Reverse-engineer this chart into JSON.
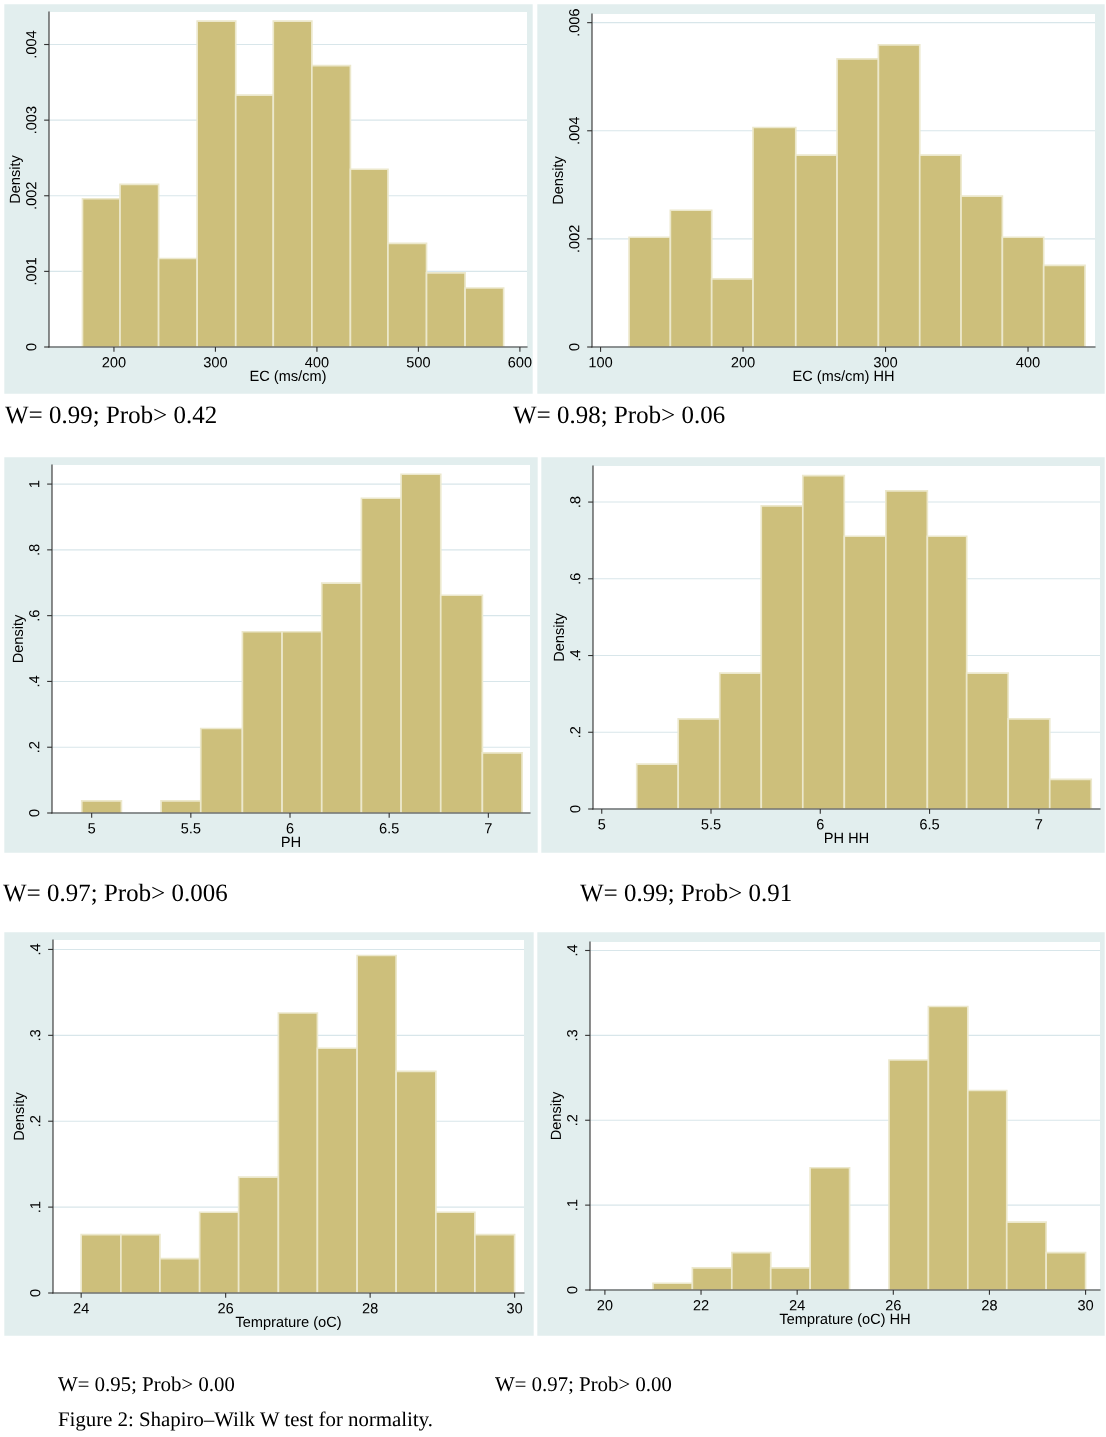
{
  "chart_data": [
    {
      "type": "histogram",
      "xlabel": "EC (ms/cm)",
      "ylabel": "Density",
      "color": "#cdbf7b",
      "bins": [
        169,
        206,
        244,
        282,
        320,
        357,
        395,
        433,
        470,
        508,
        546,
        584
      ],
      "values": [
        0.00196,
        0.00215,
        0.00117,
        0.00431,
        0.00333,
        0.00431,
        0.00372,
        0.00235,
        0.00137,
        0.00098,
        0.00078
      ],
      "xlim": [
        136,
        607
      ],
      "ylim": [
        0,
        0.00443
      ],
      "xticks": [
        200,
        300,
        400,
        500,
        600
      ],
      "yticks": [
        0,
        {
          "value": 0.001,
          "label": ".001"
        },
        {
          "value": 0.002,
          "label": ".002"
        },
        {
          "value": 0.003,
          "label": ".003"
        },
        {
          "value": 0.004,
          "label": ".004"
        }
      ],
      "grid": "y",
      "annotations": [
        "W= 0.99; Prob> 0.42"
      ]
    },
    {
      "type": "histogram",
      "xlabel": "EC (ms/cm) HH",
      "ylabel": "Density",
      "color": "#cdbf7b",
      "bins": [
        120,
        149,
        178,
        207,
        237,
        266,
        295,
        324,
        353,
        382,
        411,
        440
      ],
      "values": [
        0.00203,
        0.00253,
        0.00126,
        0.00406,
        0.00355,
        0.00533,
        0.00559,
        0.00355,
        0.00279,
        0.00203,
        0.00151
      ],
      "xlim": [
        94,
        447
      ],
      "ylim": [
        0,
        0.00616
      ],
      "xticks": [
        100,
        200,
        300,
        400
      ],
      "yticks": [
        0,
        {
          "value": 0.002,
          "label": ".002"
        },
        {
          "value": 0.004,
          "label": ".004"
        },
        {
          "value": 0.006,
          "label": ".006"
        }
      ],
      "grid": "y",
      "annotations": [
        "W= 0.98; Prob> 0.06"
      ]
    },
    {
      "type": "histogram",
      "xlabel": "PH",
      "ylabel": "Density",
      "color": "#cdbf7b",
      "bins": [
        4.95,
        5.15,
        5.35,
        5.55,
        5.76,
        5.96,
        6.16,
        6.36,
        6.56,
        6.76,
        6.97,
        7.17
      ],
      "values": [
        0.037,
        0,
        0.037,
        0.257,
        0.551,
        0.551,
        0.699,
        0.957,
        1.03,
        0.662,
        0.183
      ],
      "xlim": [
        4.8,
        7.21
      ],
      "ylim": [
        0,
        1.058
      ],
      "xticks": [
        5,
        5.5,
        6,
        6.5,
        7
      ],
      "yticks": [
        0,
        {
          "value": 0.2,
          "label": ".2"
        },
        {
          "value": 0.4,
          "label": ".4"
        },
        {
          "value": 0.6,
          "label": ".6"
        },
        {
          "value": 0.8,
          "label": ".8"
        },
        1
      ],
      "grid": "y",
      "annotations": [
        "W= 0.97; Prob> 0.006"
      ]
    },
    {
      "type": "histogram",
      "xlabel": "PH HH",
      "ylabel": "Density",
      "color": "#cdbf7b",
      "bins": [
        5.16,
        5.35,
        5.54,
        5.73,
        5.92,
        6.11,
        6.3,
        6.49,
        6.67,
        6.86,
        7.05,
        7.24
      ],
      "values": [
        0.117,
        0.235,
        0.354,
        0.79,
        0.869,
        0.711,
        0.829,
        0.711,
        0.354,
        0.235,
        0.077
      ],
      "xlim": [
        4.96,
        7.28
      ],
      "ylim": [
        0,
        0.894
      ],
      "xticks": [
        5,
        5.5,
        6,
        6.5,
        7
      ],
      "yticks": [
        0,
        {
          "value": 0.2,
          "label": ".2"
        },
        {
          "value": 0.4,
          "label": ".4"
        },
        {
          "value": 0.6,
          "label": ".6"
        },
        {
          "value": 0.8,
          "label": ".8"
        }
      ],
      "grid": "y",
      "annotations": [
        "W= 0.99; Prob> 0.91"
      ]
    },
    {
      "type": "histogram",
      "xlabel": "Temprature (oC)",
      "ylabel": "Density",
      "color": "#cdbf7b",
      "bins": [
        24,
        24.55,
        25.09,
        25.64,
        26.18,
        26.73,
        27.27,
        27.82,
        28.36,
        28.91,
        29.45,
        30
      ],
      "values": [
        0.068,
        0.068,
        0.04,
        0.094,
        0.135,
        0.326,
        0.285,
        0.393,
        0.258,
        0.094,
        0.068
      ],
      "xlim": [
        23.61,
        30.13
      ],
      "ylim": [
        0,
        0.411
      ],
      "xticks": [
        24,
        26,
        28,
        30
      ],
      "yticks": [
        0,
        {
          "value": 0.1,
          "label": ".1"
        },
        {
          "value": 0.2,
          "label": ".2"
        },
        {
          "value": 0.3,
          "label": ".3"
        },
        {
          "value": 0.4,
          "label": ".4"
        }
      ],
      "grid": "y",
      "annotations": [
        "W= 0.95; Prob> 0.00"
      ]
    },
    {
      "type": "histogram",
      "xlabel": "Temprature (oC) HH",
      "ylabel": "Density",
      "color": "#cdbf7b",
      "bins": [
        21,
        21.82,
        22.64,
        23.45,
        24.27,
        25.09,
        25.91,
        26.73,
        27.55,
        28.36,
        29.18,
        30
      ],
      "values": [
        0.008,
        0.026,
        0.044,
        0.026,
        0.144,
        0,
        0.271,
        0.334,
        0.235,
        0.08,
        0.044
      ],
      "xlim": [
        19.69,
        30.3
      ],
      "ylim": [
        0,
        0.41
      ],
      "xticks": [
        20,
        22,
        24,
        26,
        28,
        30
      ],
      "yticks": [
        0,
        {
          "value": 0.1,
          "label": ".1"
        },
        {
          "value": 0.2,
          "label": ".2"
        },
        {
          "value": 0.3,
          "label": ".3"
        },
        {
          "value": 0.4,
          "label": ".4"
        }
      ],
      "grid": "y",
      "annotations": [
        "W= 0.97; Prob> 0.00",
        "Figure 2: Shapiro–Wilk W test for normality."
      ]
    }
  ]
}
